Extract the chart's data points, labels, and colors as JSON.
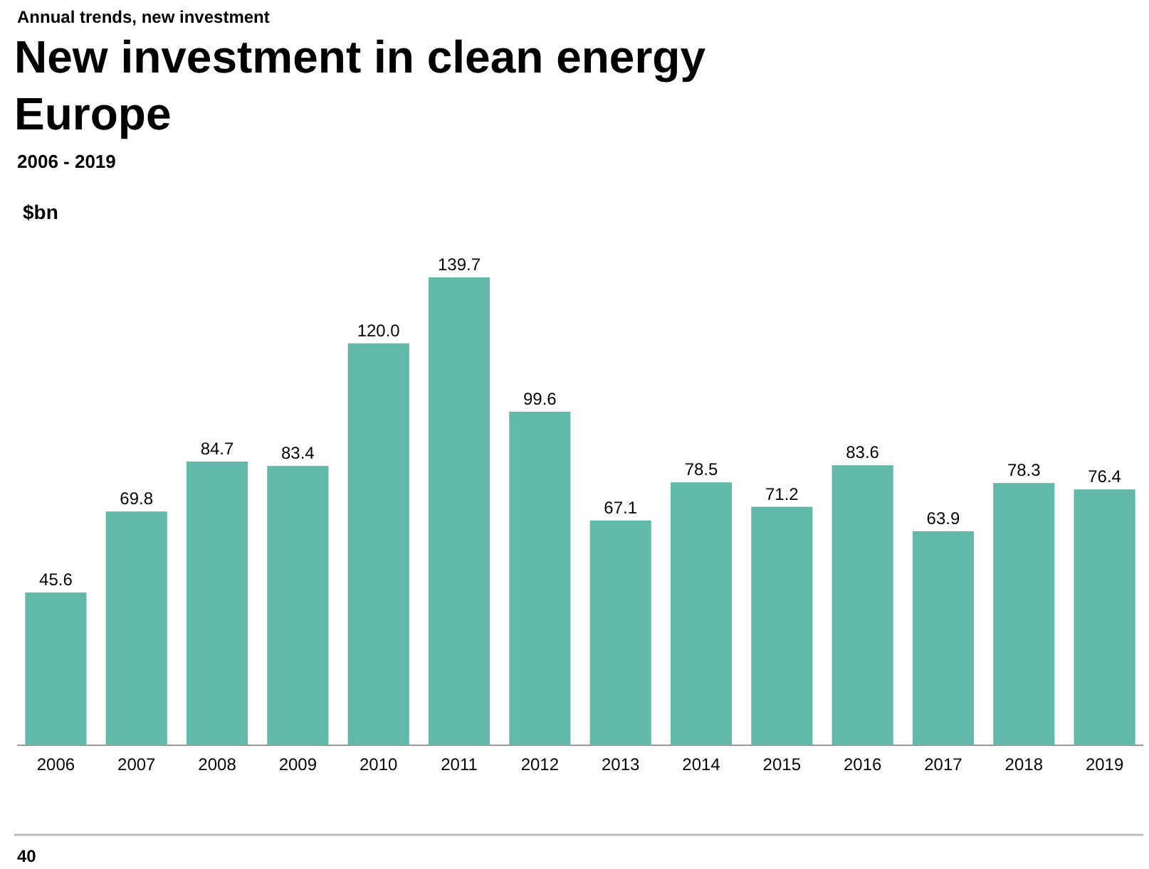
{
  "chart_data": {
    "type": "bar",
    "title": "New investment in clean energy\nEurope",
    "subtitle": "2006 - 2019",
    "ylabel": "$bn",
    "annotations": [
      "Annual trends, new investment",
      "40"
    ],
    "categories": [
      "2006",
      "2007",
      "2008",
      "2009",
      "2010",
      "2011",
      "2012",
      "2013",
      "2014",
      "2015",
      "2016",
      "2017",
      "2018",
      "2019"
    ],
    "values": [
      45.6,
      69.8,
      84.7,
      83.4,
      120.0,
      139.7,
      99.6,
      67.1,
      78.5,
      71.2,
      83.6,
      63.9,
      78.3,
      76.4
    ],
    "value_labels": [
      "45.6",
      "69.8",
      "84.7",
      "83.4",
      "120.0",
      "139.7",
      "99.6",
      "67.1",
      "78.5",
      "71.2",
      "83.6",
      "63.9",
      "78.3",
      "76.4"
    ],
    "color": "#62b9aa"
  }
}
